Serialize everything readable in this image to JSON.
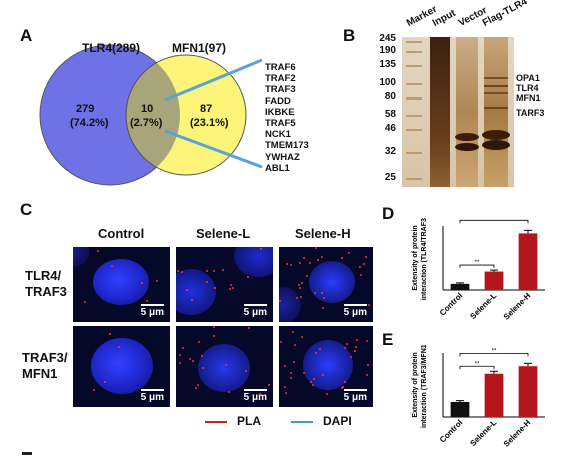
{
  "panels": {
    "A": "A",
    "B": "B",
    "C": "C",
    "D": "D",
    "E": "E"
  },
  "venn": {
    "left_title": "TLR4(289)",
    "right_title": "MFN1(97)",
    "left_count": "279",
    "left_pct": "(74.2%)",
    "overlap_count": "10",
    "overlap_pct": "(2.7%)",
    "right_count": "87",
    "right_pct": "(23.1%)",
    "left_color": "#6f72e6",
    "right_color": "#fdf57a",
    "overlap_color": "#a9a57a",
    "genes": [
      "TRAF6",
      "TRAF2",
      "TRAF3",
      "FADD",
      "IKBKE",
      "TRAF5",
      "NCK1",
      "TMEM173",
      "YWHAZ",
      "ABL1"
    ]
  },
  "gel": {
    "lanes": [
      "Marker",
      "Input",
      "Vector",
      "Flag-TLR4"
    ],
    "markers": [
      "245",
      "190",
      "135",
      "100",
      "80",
      "58",
      "46",
      "32",
      "25"
    ],
    "band_labels": [
      "OPA1",
      "TLR4",
      "MFN1",
      "TARF3"
    ]
  },
  "micro": {
    "columns": [
      "Control",
      "Selene-L",
      "Selene-H"
    ],
    "rows": [
      {
        "label1": "TLR4/",
        "label2": "TRAF3"
      },
      {
        "label1": "TRAF3/",
        "label2": "MFN1"
      }
    ],
    "scale_label": "5 μm",
    "legend": [
      {
        "label": "PLA",
        "color": "#cc2222"
      },
      {
        "label": "DAPI",
        "color": "#3aa0c8"
      }
    ]
  },
  "chart_data": [
    {
      "type": "bar",
      "panel": "D",
      "categories": [
        "Control",
        "Selene-L",
        "Selene-H"
      ],
      "values": [
        5,
        15,
        46
      ],
      "errors": [
        0.8,
        1.2,
        2.5
      ],
      "ylabel_line1": "Extensity of protein",
      "ylabel_line2": "interaction (TLR4/TRAF3)",
      "ylim": [
        0,
        52
      ],
      "colors": [
        "#111111",
        "#b5161b",
        "#b5161b"
      ],
      "significance": [
        "**",
        "**"
      ]
    },
    {
      "type": "bar",
      "panel": "E",
      "categories": [
        "Control",
        "Selene-L",
        "Selene-H"
      ],
      "values": [
        8,
        23,
        27
      ],
      "errors": [
        0.7,
        1.3,
        1.5
      ],
      "ylabel_line1": "Extensity of protein",
      "ylabel_line2": "interaction (TRAF3/MFN1)",
      "ylim": [
        0,
        34
      ],
      "colors": [
        "#111111",
        "#b5161b",
        "#b5161b"
      ],
      "significance": [
        "**",
        "**"
      ]
    }
  ]
}
